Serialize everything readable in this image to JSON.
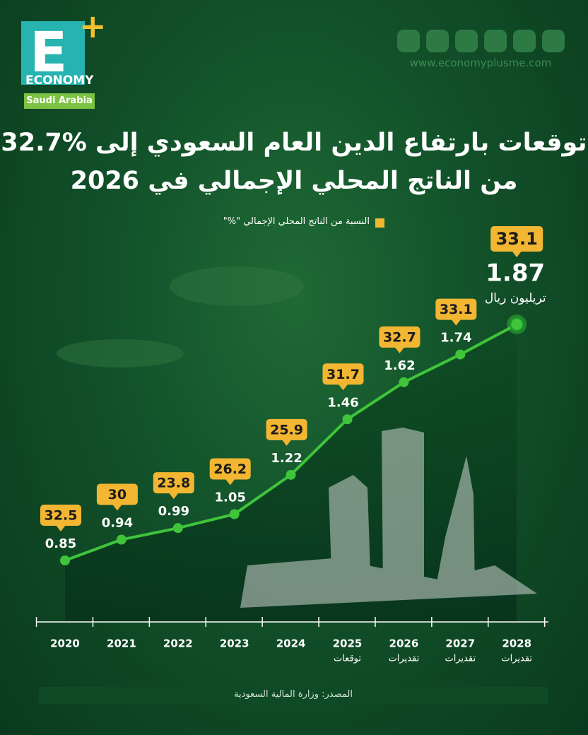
{
  "logo": {
    "letter": "E",
    "plus": "+",
    "word": "ECONOMY",
    "region": "Saudi Arabia"
  },
  "website": "www.economyplusme.com",
  "source": "المصدر: وزارة المالية السعودية",
  "chart_data": {
    "type": "line",
    "title": "توقعات بارتفاع الدين العام السعودي إلى %32.7",
    "subtitle": "من الناتج المحلي الإجمالي في 2026",
    "categories": [
      "2020",
      "2021",
      "2022",
      "2023",
      "2024",
      "2025",
      "2026",
      "2027",
      "2028"
    ],
    "category_notes": [
      null,
      null,
      null,
      null,
      null,
      "توقعات",
      "تقديرات",
      "تقديرات",
      "تقديرات"
    ],
    "values": [
      0.85,
      0.94,
      0.99,
      1.05,
      1.22,
      1.46,
      1.62,
      1.74,
      1.87
    ],
    "unit_label": "تريليون ريال",
    "color": "#3fc43a",
    "series": [
      {
        "name": "النسبة من الناتج المحلي الإجمالي \"%\"",
        "color": "#f2b632",
        "values": [
          32.5,
          30,
          23.8,
          26.2,
          25.9,
          31.7,
          32.7,
          33.1,
          33.1
        ]
      }
    ]
  }
}
